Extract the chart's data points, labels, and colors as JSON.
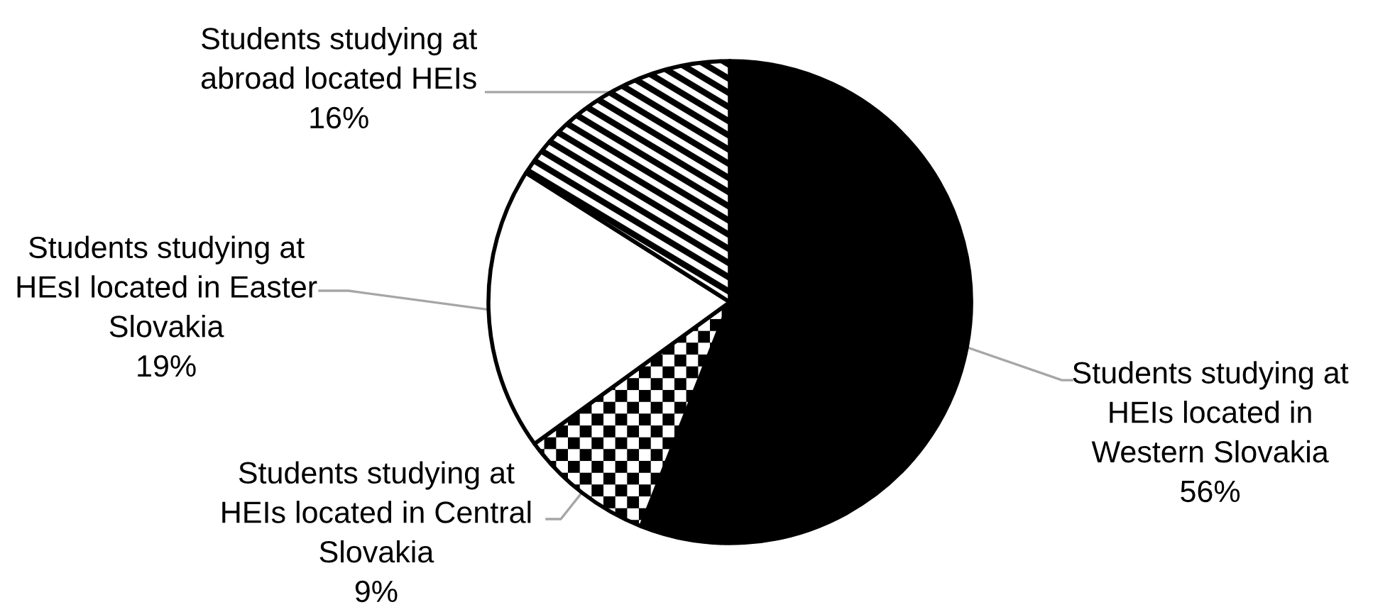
{
  "chart_data": {
    "type": "pie",
    "categories": [
      "Students studying at HEIs located in Western Slovakia",
      "Students studying at HEIs located in Central Slovakia",
      "Students studying at HEsI located in Easter Slovakia",
      "Students studying at abroad located HEIs"
    ],
    "values": [
      56,
      9,
      19,
      16
    ],
    "colors": [
      "#000000",
      "#000000",
      "#ffffff",
      "#000000"
    ],
    "value_labels": [
      "56%",
      "9%",
      "19%",
      "16%"
    ]
  }
}
